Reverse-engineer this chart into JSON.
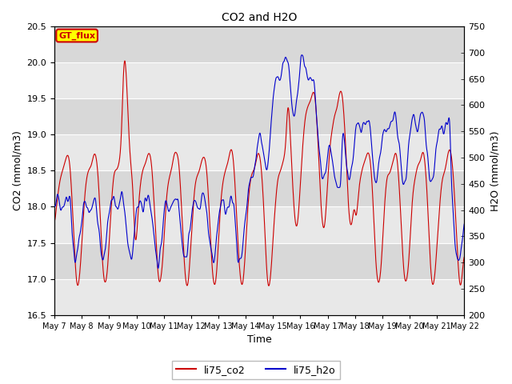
{
  "title": "CO2 and H2O",
  "xlabel": "Time",
  "ylabel_left": "CO2 (mmol/m3)",
  "ylabel_right": "H2O (mmol/m3)",
  "ylim_left": [
    16.5,
    20.5
  ],
  "ylim_right": [
    200,
    750
  ],
  "x_tick_labels": [
    "May 7",
    "May 8",
    "May 9",
    "May 10",
    "May 11",
    "May 12",
    "May 13",
    "May 14",
    "May 15",
    "May 16",
    "May 17",
    "May 18",
    "May 19",
    "May 20",
    "May 21",
    "May 22"
  ],
  "legend_labels": [
    "li75_co2",
    "li75_h2o"
  ],
  "co2_color": "#cc0000",
  "h2o_color": "#0000cc",
  "plot_bg_color": "#d8d8d8",
  "band_color": "#e8e8e8",
  "annotation_text": "GT_flux",
  "annotation_bg": "#ffff00",
  "annotation_border": "#cc0000",
  "annotation_text_color": "#cc0000",
  "yticks_left": [
    16.5,
    17.0,
    17.5,
    18.0,
    18.5,
    19.0,
    19.5,
    20.0,
    20.5
  ],
  "yticks_right": [
    200,
    250,
    300,
    350,
    400,
    450,
    500,
    550,
    600,
    650,
    700,
    750
  ]
}
